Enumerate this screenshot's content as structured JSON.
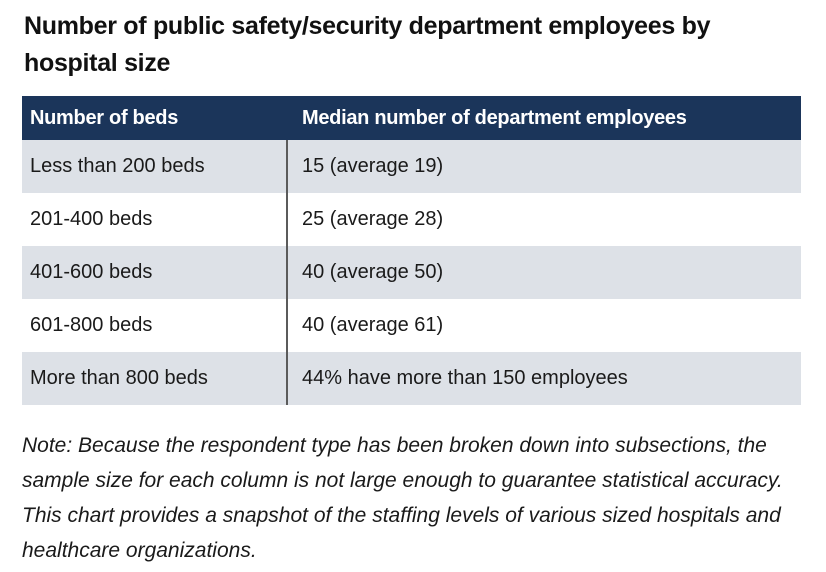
{
  "chart_data": {
    "type": "table",
    "title": "Number of public safety/security department employees by hospital size",
    "columns": [
      "Number of beds",
      "Median number of department employees"
    ],
    "rows": [
      {
        "beds": "Less than 200 beds",
        "employees": "15 (average 19)"
      },
      {
        "beds": "201-400 beds",
        "employees": "25 (average 28)"
      },
      {
        "beds": "401-600 beds",
        "employees": "40 (average 50)"
      },
      {
        "beds": "601-800 beds",
        "employees": "40 (average 61)"
      },
      {
        "beds": "More than 800 beds",
        "employees": "44% have more than 150 employees"
      }
    ],
    "note": "Note: Because the respondent type has been broken down into subsections, the sample size for each column is not large enough to guarantee statistical accuracy. This chart provides a snapshot of the staffing levels of various sized hospitals and healthcare organizations."
  },
  "colors": {
    "header_bg": "#1b355a",
    "header_text": "#ffffff",
    "shaded_row": "#dde1e7",
    "divider": "#5b5b5b"
  }
}
